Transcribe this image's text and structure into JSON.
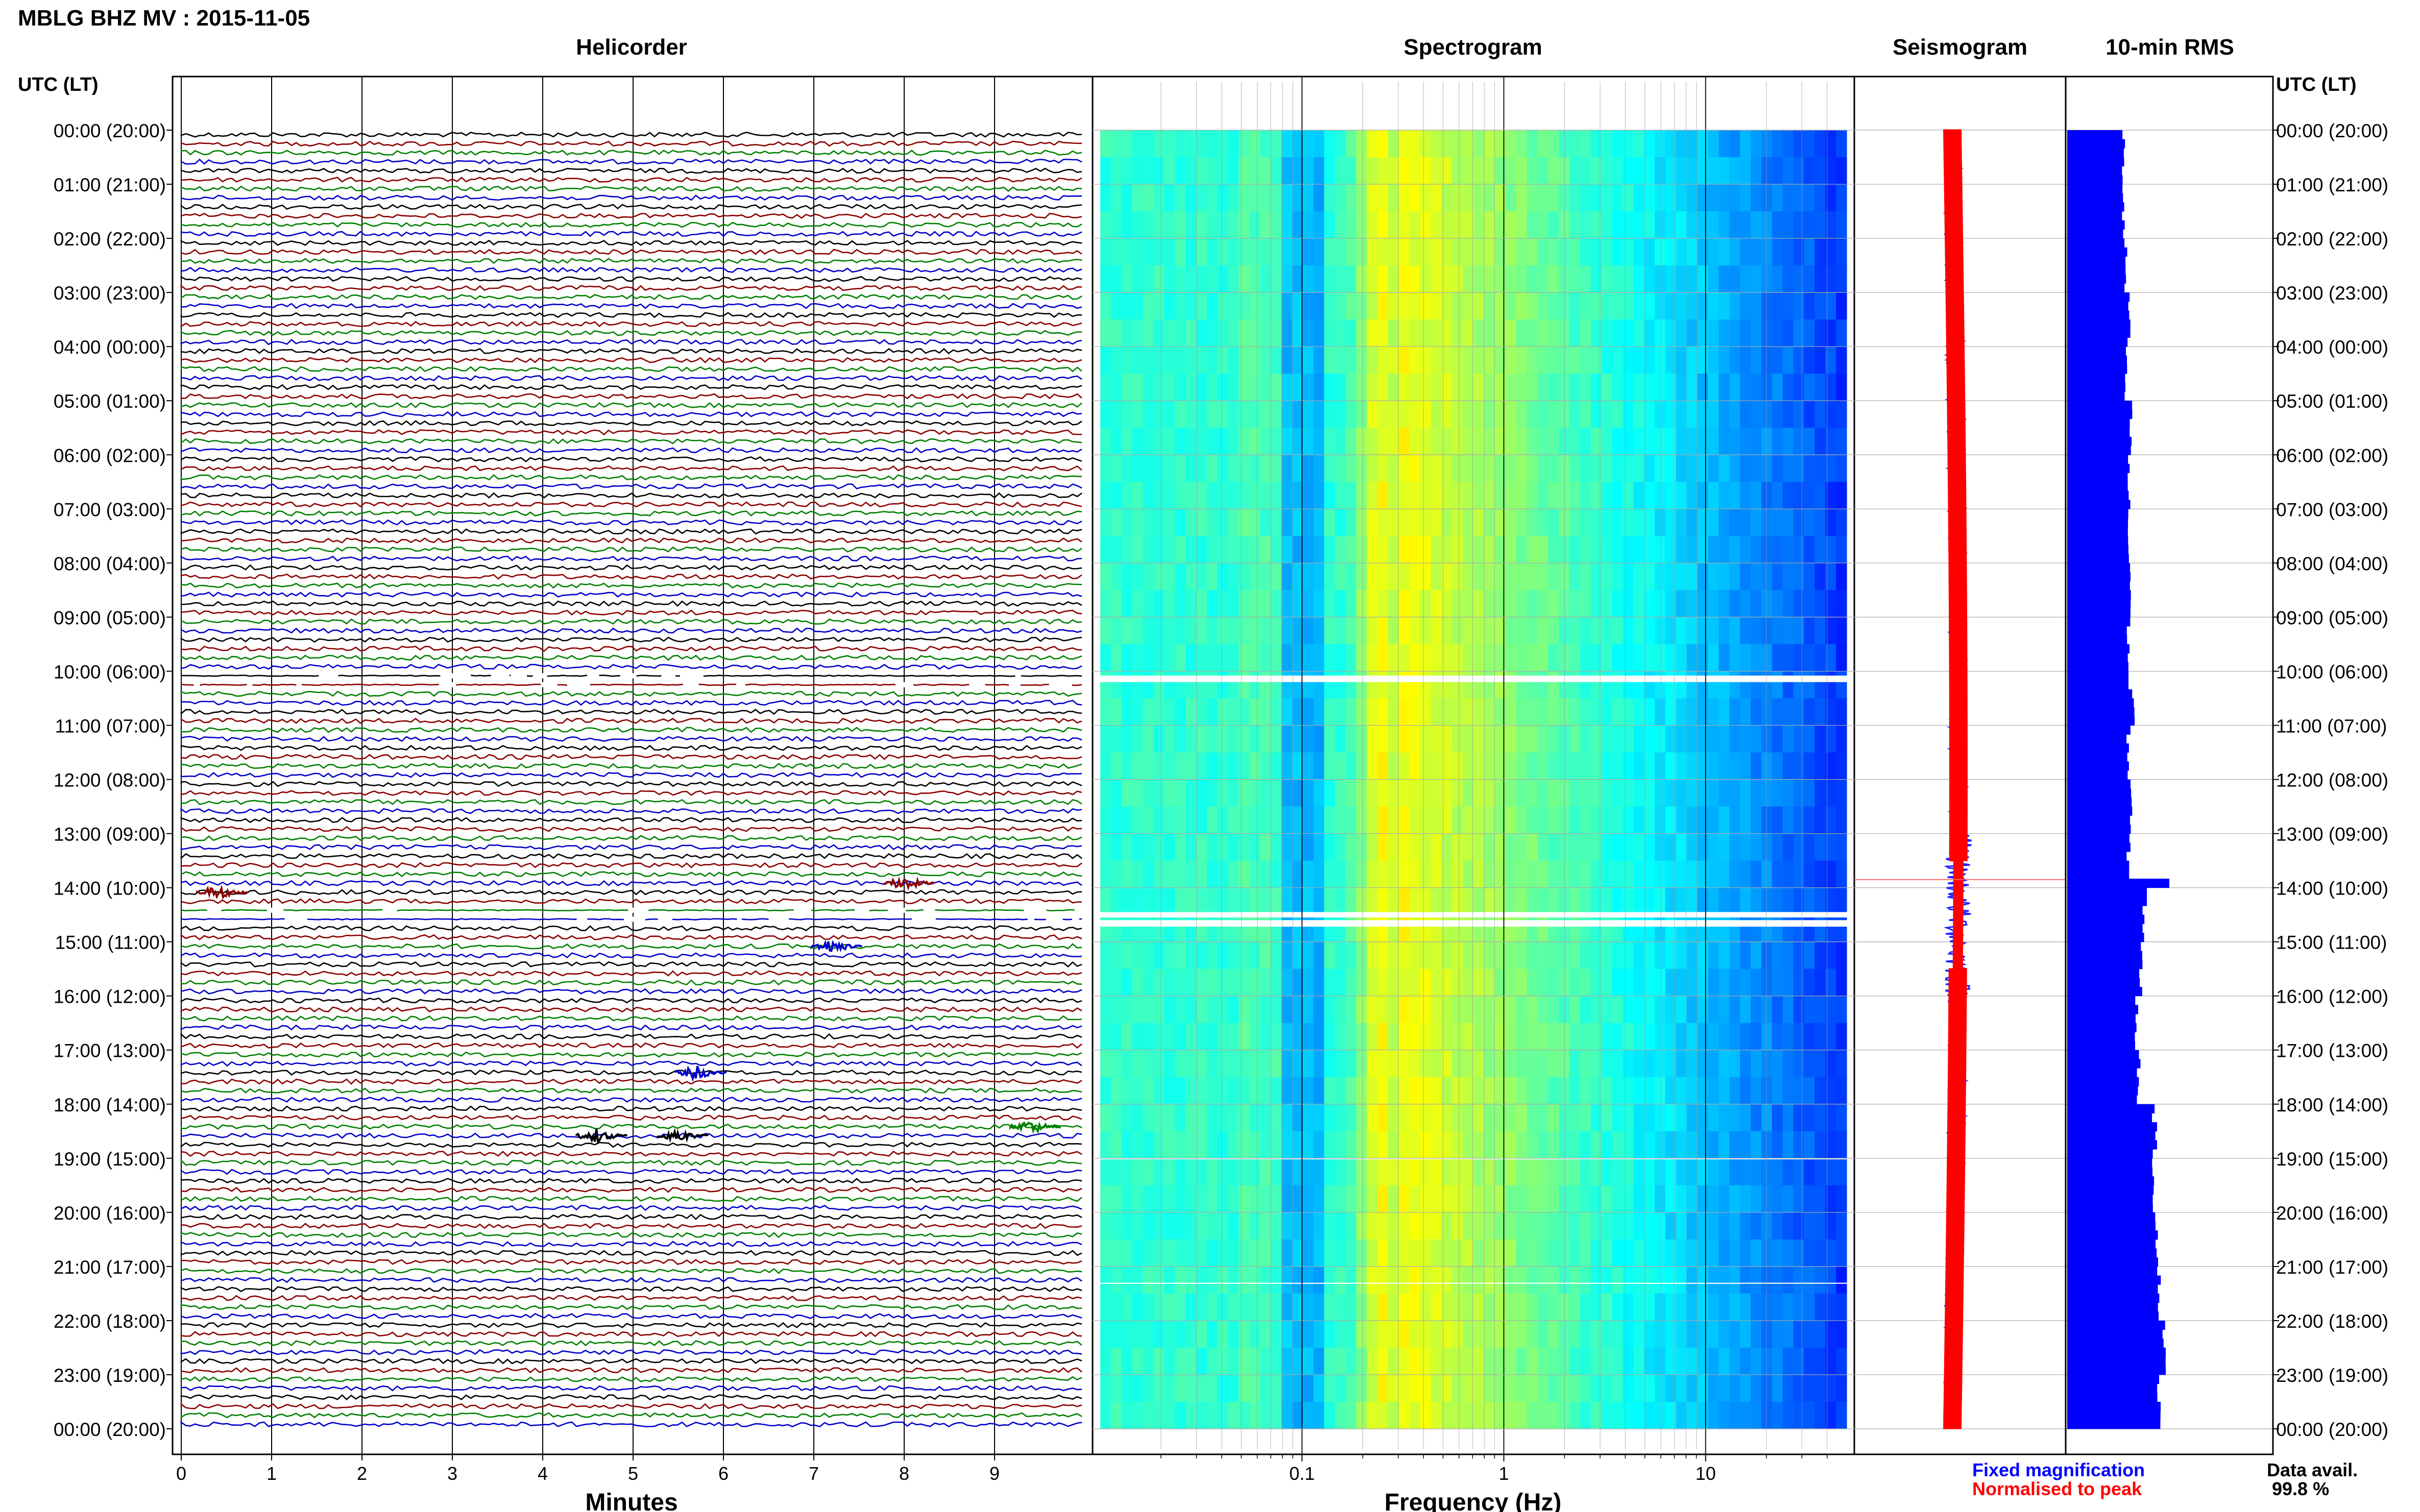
{
  "title": "MBLG BHZ MV : 2015-11-05",
  "panels": {
    "helicorder": "Helicorder",
    "spectrogram": "Spectrogram",
    "seismogram": "Seismogram",
    "rms": "10-min RMS"
  },
  "axis_header_left": "UTC (LT)",
  "axis_header_right": "UTC (LT)",
  "time_labels": [
    "00:00 (20:00)",
    "01:00 (21:00)",
    "02:00 (22:00)",
    "03:00 (23:00)",
    "04:00 (00:00)",
    "05:00 (01:00)",
    "06:00 (02:00)",
    "07:00 (03:00)",
    "08:00 (04:00)",
    "09:00 (05:00)",
    "10:00 (06:00)",
    "11:00 (07:00)",
    "12:00 (08:00)",
    "13:00 (09:00)",
    "14:00 (10:00)",
    "15:00 (11:00)",
    "16:00 (12:00)",
    "17:00 (13:00)",
    "18:00 (14:00)",
    "19:00 (15:00)",
    "20:00 (16:00)",
    "21:00 (17:00)",
    "22:00 (18:00)",
    "23:00 (19:00)",
    "00:00 (20:00)"
  ],
  "minutes_ticks": [
    "0",
    "1",
    "2",
    "3",
    "4",
    "5",
    "6",
    "7",
    "8",
    "9"
  ],
  "minutes_label": "Minutes",
  "freq_ticks": [
    "0.1",
    "1",
    "10"
  ],
  "freq_label": "Frequency (Hz)",
  "legend": {
    "fixed": "Fixed magnification",
    "normalised": "Normalised to peak"
  },
  "data_avail_label": "Data avail.",
  "data_avail_value": "99.8 %",
  "colors": {
    "trace_cycle": [
      "#000000",
      "#8b0000",
      "#008000",
      "#0000cc"
    ],
    "rms_bar": "#0000ff",
    "fixed_legend": "#0000ff",
    "normalised_legend": "#ff0000",
    "gap": "#ffffff"
  },
  "chart_data": [
    {
      "type": "line",
      "name": "helicorder",
      "x_unit": "minutes",
      "xlim": [
        0,
        10
      ],
      "rows_per_hour": 6,
      "rows": 144,
      "data_gaps_utc": [
        "10:00-10:20",
        "14:20-14:40"
      ],
      "events": [
        {
          "time": "13:50",
          "minute": 8.0,
          "color": "#8b0000"
        },
        {
          "time": "14:00",
          "minute": 0.4,
          "color": "#8b0000"
        },
        {
          "time": "15:00",
          "minute": 7.2,
          "color": "#0000cc"
        },
        {
          "time": "17:20",
          "minute": 5.7,
          "color": "#0000cc"
        },
        {
          "time": "18:20",
          "minute": 9.4,
          "color": "#008000"
        },
        {
          "time": "18:30",
          "minute": 4.6,
          "color": "#000000"
        },
        {
          "time": "18:30",
          "minute": 5.5,
          "color": "#000000"
        }
      ]
    },
    {
      "type": "heatmap",
      "name": "spectrogram",
      "x_scale": "log",
      "xlim": [
        0.01,
        50
      ],
      "x_ticks": [
        0.1,
        1,
        10
      ],
      "peak_band_hz": [
        0.2,
        0.3
      ],
      "white_gaps_utc": [
        "10:00-10:20",
        "14:20-14:40",
        "19:00",
        "21:15"
      ]
    },
    {
      "type": "bar",
      "name": "10-min RMS",
      "interval_minutes": 10,
      "hourly_relative_rms": [
        0.55,
        0.55,
        0.57,
        0.6,
        0.57,
        0.62,
        0.6,
        0.6,
        0.62,
        0.6,
        0.65,
        0.6,
        0.62,
        0.6,
        0.75,
        0.72,
        0.68,
        0.7,
        0.85,
        0.85,
        0.88,
        0.9,
        0.95,
        0.9
      ]
    }
  ]
}
